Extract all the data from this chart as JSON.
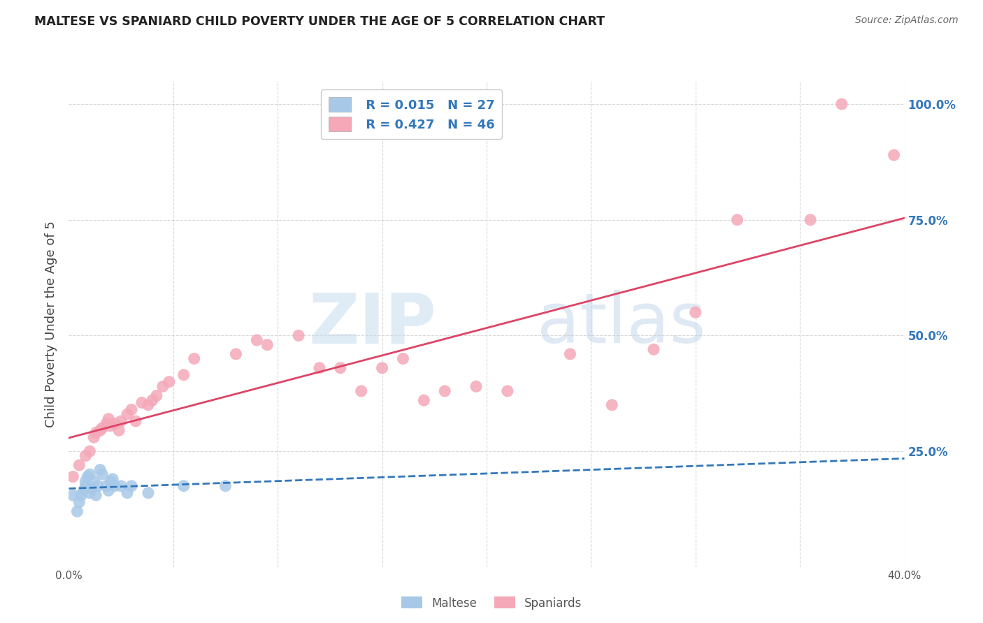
{
  "title": "MALTESE VS SPANIARD CHILD POVERTY UNDER THE AGE OF 5 CORRELATION CHART",
  "source": "Source: ZipAtlas.com",
  "ylabel": "Child Poverty Under the Age of 5",
  "xlim": [
    0.0,
    0.4
  ],
  "ylim": [
    0.0,
    1.05
  ],
  "xticks": [
    0.0,
    0.05,
    0.1,
    0.15,
    0.2,
    0.25,
    0.3,
    0.35,
    0.4
  ],
  "xticklabels": [
    "0.0%",
    "",
    "",
    "",
    "",
    "",
    "",
    "",
    "40.0%"
  ],
  "ytick_positions": [
    0.0,
    0.25,
    0.5,
    0.75,
    1.0
  ],
  "yticklabels": [
    "",
    "25.0%",
    "50.0%",
    "75.0%",
    "100.0%"
  ],
  "grid_color": "#d8d8d8",
  "background_color": "#ffffff",
  "maltese_color": "#a8c8e8",
  "spaniard_color": "#f4a8b8",
  "maltese_line_color": "#3377bb",
  "spaniard_line_color": "#dd4466",
  "legend_r_maltese": "R = 0.015",
  "legend_n_maltese": "N = 27",
  "legend_r_spaniard": "R = 0.427",
  "legend_n_spaniard": "N = 46",
  "watermark_zip": "ZIP",
  "watermark_atlas": "atlas",
  "maltese_x": [
    0.002,
    0.004,
    0.005,
    0.006,
    0.007,
    0.008,
    0.008,
    0.009,
    0.01,
    0.01,
    0.011,
    0.012,
    0.013,
    0.014,
    0.015,
    0.016,
    0.018,
    0.019,
    0.02,
    0.021,
    0.022,
    0.025,
    0.028,
    0.03,
    0.038,
    0.055,
    0.075
  ],
  "maltese_y": [
    0.155,
    0.12,
    0.14,
    0.155,
    0.165,
    0.175,
    0.185,
    0.195,
    0.16,
    0.2,
    0.17,
    0.185,
    0.155,
    0.175,
    0.21,
    0.2,
    0.175,
    0.165,
    0.185,
    0.19,
    0.175,
    0.175,
    0.16,
    0.175,
    0.16,
    0.175,
    0.175
  ],
  "spaniard_x": [
    0.002,
    0.005,
    0.008,
    0.01,
    0.012,
    0.013,
    0.015,
    0.016,
    0.018,
    0.019,
    0.02,
    0.022,
    0.024,
    0.025,
    0.028,
    0.03,
    0.032,
    0.035,
    0.038,
    0.04,
    0.042,
    0.045,
    0.048,
    0.055,
    0.06,
    0.08,
    0.09,
    0.095,
    0.11,
    0.12,
    0.13,
    0.14,
    0.15,
    0.16,
    0.17,
    0.18,
    0.195,
    0.21,
    0.24,
    0.26,
    0.28,
    0.3,
    0.32,
    0.355,
    0.37,
    0.395
  ],
  "spaniard_y": [
    0.195,
    0.22,
    0.24,
    0.25,
    0.28,
    0.29,
    0.295,
    0.3,
    0.31,
    0.32,
    0.305,
    0.31,
    0.295,
    0.315,
    0.33,
    0.34,
    0.315,
    0.355,
    0.35,
    0.36,
    0.37,
    0.39,
    0.4,
    0.415,
    0.45,
    0.46,
    0.49,
    0.48,
    0.5,
    0.43,
    0.43,
    0.38,
    0.43,
    0.45,
    0.36,
    0.38,
    0.39,
    0.38,
    0.46,
    0.35,
    0.47,
    0.55,
    0.75,
    0.75,
    1.0,
    0.89
  ]
}
